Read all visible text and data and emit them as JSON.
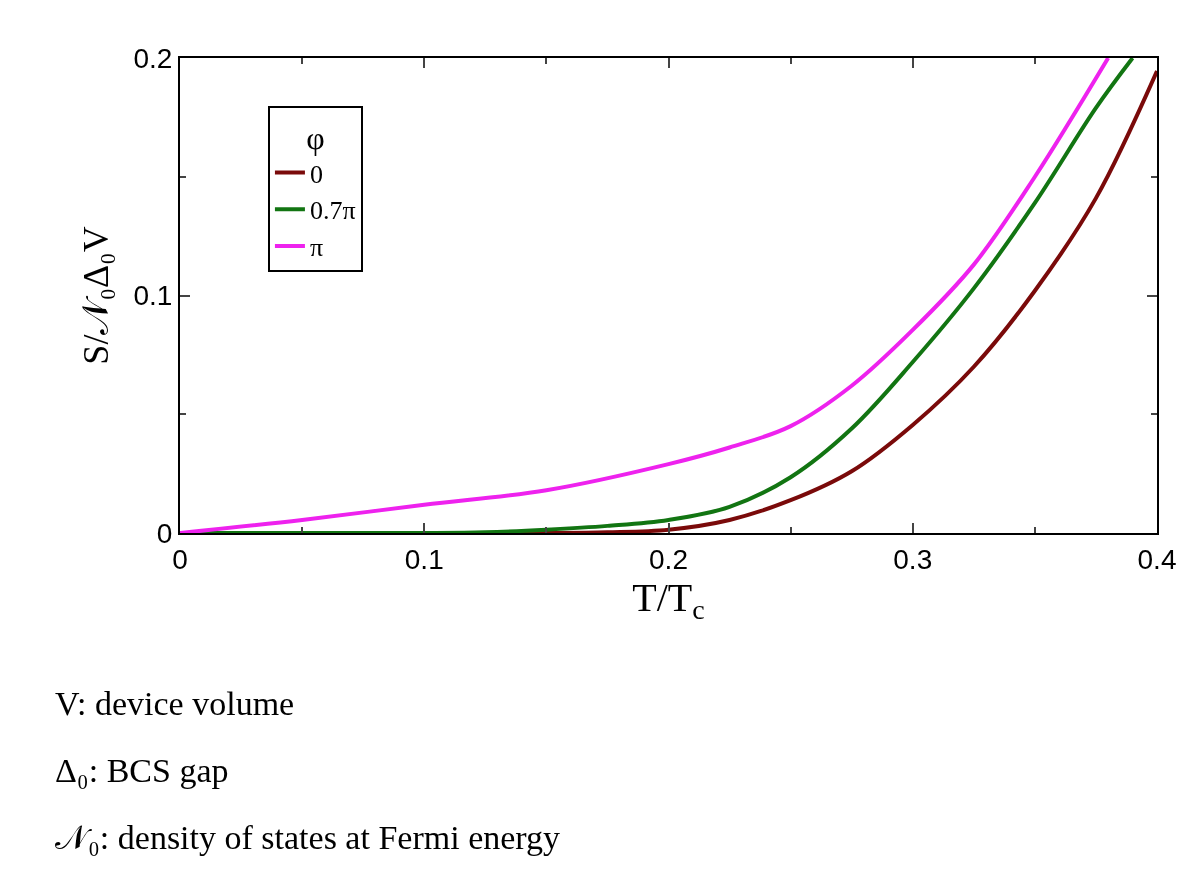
{
  "chart_data": {
    "type": "line",
    "xlabel": "T/T$_{c}$",
    "ylabel": "S/𝒩₀Δ₀V",
    "legend_title": "φ",
    "xlim": [
      0,
      0.4
    ],
    "xticks": [
      0,
      0.1,
      0.2,
      0.3,
      0.4
    ],
    "ylim": [
      0,
      0.2
    ],
    "yticks": [
      0,
      0.1,
      0.2
    ],
    "legend": "top left",
    "marker": "none",
    "line_style": "solid",
    "series": [
      {
        "name": "0",
        "color": "#7a0a0a",
        "x": [
          0,
          0.1,
          0.15,
          0.175,
          0.2,
          0.225,
          0.25,
          0.275,
          0.3,
          0.325,
          0.35,
          0.375,
          0.4
        ],
        "values": [
          0,
          0,
          0,
          0.0003,
          0.0014,
          0.0055,
          0.0138,
          0.026,
          0.0455,
          0.07,
          0.102,
          0.141,
          0.1945
        ]
      },
      {
        "name": "0.7π",
        "color": "#127512",
        "x": [
          0,
          0.1,
          0.125,
          0.15,
          0.175,
          0.2,
          0.225,
          0.25,
          0.275,
          0.3,
          0.325,
          0.35,
          0.375,
          0.39
        ],
        "values": [
          0,
          0,
          0.0003,
          0.0014,
          0.003,
          0.0055,
          0.011,
          0.0235,
          0.044,
          0.072,
          0.103,
          0.139,
          0.179,
          0.2
        ]
      },
      {
        "name": "π",
        "color": "#ee22ee",
        "x": [
          0,
          0.05,
          0.1,
          0.15,
          0.2,
          0.225,
          0.25,
          0.275,
          0.3,
          0.325,
          0.35,
          0.38
        ],
        "values": [
          0,
          0.0055,
          0.0119,
          0.018,
          0.029,
          0.036,
          0.045,
          0.062,
          0.0855,
          0.113,
          0.15,
          0.2
        ]
      }
    ],
    "annotations": [
      "V: device volume",
      "Δ₀: BCS gap",
      "𝒩₀: density of states at Fermi energy"
    ]
  }
}
